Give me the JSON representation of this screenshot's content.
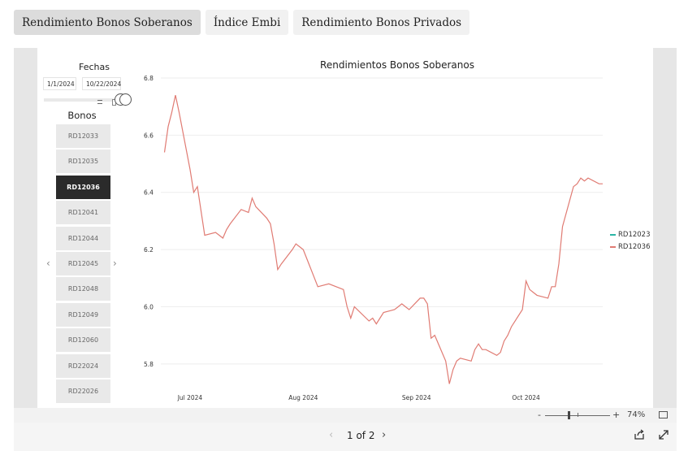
{
  "tabs": [
    {
      "label": "Rendimiento Bonos Soberanos",
      "active": true
    },
    {
      "label": "Índice Embi",
      "active": false
    },
    {
      "label": "Rendimiento Bonos Privados",
      "active": false
    }
  ],
  "filters": {
    "fechas_label": "Fechas",
    "start_date": "1/1/2024",
    "end_date": "10/22/2024",
    "bonos_label": "Bonos",
    "bonds": [
      "RD12033",
      "RD12035",
      "RD12036",
      "RD12041",
      "RD12044",
      "RD12045",
      "RD12048",
      "RD12049",
      "RD12060",
      "RD22024",
      "RD22026"
    ],
    "selected_bond": "RD12036"
  },
  "chart_data": {
    "type": "line",
    "title": "Rendimientos Bonos Soberanos",
    "xlabel": "",
    "ylabel": "",
    "x_ticks": [
      "Jul 2024",
      "Aug 2024",
      "Sep 2024",
      "Oct 2024"
    ],
    "x_range": [
      "2024-06-23",
      "2024-10-22"
    ],
    "ylim": [
      5.7,
      6.8
    ],
    "y_ticks": [
      5.8,
      6.0,
      6.2,
      6.4,
      6.6,
      6.8
    ],
    "grid": true,
    "legend": "right",
    "series": [
      {
        "name": "RD12023",
        "color": "#2ab5a5",
        "x": [],
        "y": []
      },
      {
        "name": "RD12036",
        "color": "#e07b73",
        "x": [
          "2024-06-24",
          "2024-06-25",
          "2024-06-26",
          "2024-06-27",
          "2024-06-28",
          "2024-07-01",
          "2024-07-02",
          "2024-07-03",
          "2024-07-05",
          "2024-07-08",
          "2024-07-10",
          "2024-07-11",
          "2024-07-12",
          "2024-07-15",
          "2024-07-17",
          "2024-07-18",
          "2024-07-19",
          "2024-07-22",
          "2024-07-23",
          "2024-07-24",
          "2024-07-25",
          "2024-07-26",
          "2024-07-29",
          "2024-07-30",
          "2024-07-31",
          "2024-08-01",
          "2024-08-05",
          "2024-08-08",
          "2024-08-12",
          "2024-08-13",
          "2024-08-14",
          "2024-08-15",
          "2024-08-19",
          "2024-08-20",
          "2024-08-21",
          "2024-08-22",
          "2024-08-23",
          "2024-08-26",
          "2024-08-27",
          "2024-08-28",
          "2024-08-29",
          "2024-08-30",
          "2024-09-02",
          "2024-09-03",
          "2024-09-04",
          "2024-09-05",
          "2024-09-06",
          "2024-09-09",
          "2024-09-10",
          "2024-09-11",
          "2024-09-12",
          "2024-09-13",
          "2024-09-16",
          "2024-09-17",
          "2024-09-18",
          "2024-09-19",
          "2024-09-20",
          "2024-09-23",
          "2024-09-24",
          "2024-09-25",
          "2024-09-26",
          "2024-09-27",
          "2024-09-30",
          "2024-10-01",
          "2024-10-02",
          "2024-10-03",
          "2024-10-04",
          "2024-10-07",
          "2024-10-08",
          "2024-10-09",
          "2024-10-10",
          "2024-10-11",
          "2024-10-14",
          "2024-10-15",
          "2024-10-16",
          "2024-10-17",
          "2024-10-18",
          "2024-10-21",
          "2024-10-22"
        ],
        "y": [
          6.54,
          6.63,
          6.68,
          6.74,
          6.68,
          6.48,
          6.4,
          6.42,
          6.25,
          6.26,
          6.24,
          6.27,
          6.29,
          6.34,
          6.33,
          6.38,
          6.35,
          6.31,
          6.29,
          6.22,
          6.13,
          6.15,
          6.2,
          6.22,
          6.21,
          6.2,
          6.07,
          6.08,
          6.06,
          6.0,
          5.96,
          6.0,
          5.95,
          5.96,
          5.94,
          5.96,
          5.98,
          5.99,
          6.0,
          6.01,
          6.0,
          5.99,
          6.03,
          6.03,
          6.01,
          5.89,
          5.9,
          5.81,
          5.73,
          5.78,
          5.81,
          5.82,
          5.81,
          5.85,
          5.87,
          5.85,
          5.85,
          5.83,
          5.84,
          5.88,
          5.9,
          5.93,
          5.99,
          6.09,
          6.06,
          6.05,
          6.04,
          6.03,
          6.07,
          6.07,
          6.15,
          6.28,
          6.42,
          6.43,
          6.45,
          6.44,
          6.45,
          6.43,
          6.43
        ]
      }
    ]
  },
  "zoom": {
    "minus": "-",
    "plus": "+",
    "percent": "74%",
    "level": 0.74
  },
  "pager": {
    "label": "1 of 2",
    "prev": "‹",
    "next": "›"
  },
  "icons": {
    "share": "share-icon",
    "expand": "expand-icon",
    "fit": "fit-to-page-icon"
  }
}
